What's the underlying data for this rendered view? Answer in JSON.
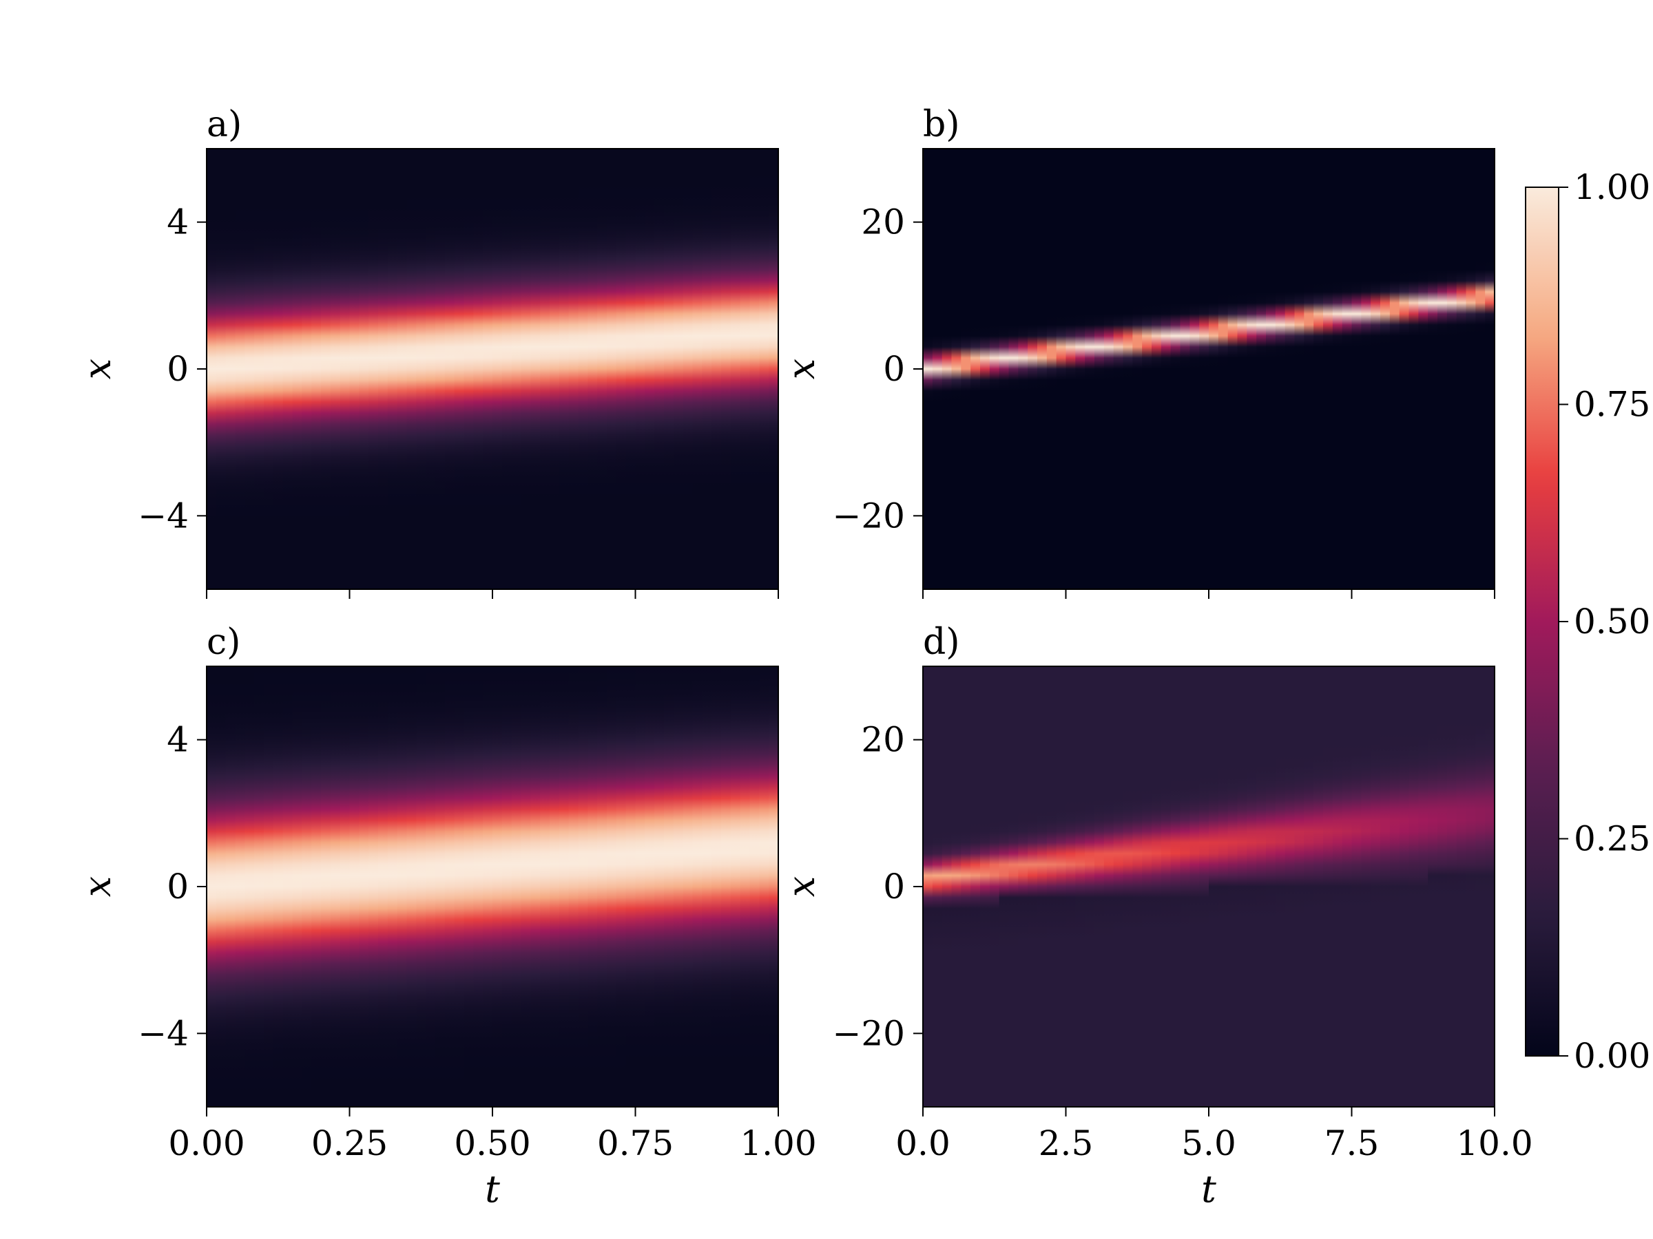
{
  "figure": {
    "colormap": {
      "name": "rocket",
      "stops": [
        "#03051a",
        "#2b1c3d",
        "#5b1e51",
        "#a11a5b",
        "#e83f3f",
        "#f6ab83",
        "#faebdd"
      ],
      "ticks": [
        0.0,
        0.25,
        0.5,
        0.75,
        1.0
      ],
      "tick_labels": [
        "0.00",
        "0.25",
        "0.50",
        "0.75",
        "1.00"
      ],
      "range": [
        0,
        1
      ]
    }
  },
  "chart_data": [
    {
      "type": "heatmap",
      "panel_label": "a)",
      "xlabel": "",
      "ylabel": "x",
      "xlim": [
        0,
        1
      ],
      "ylim": [
        -6,
        6
      ],
      "x_ticks": [
        0,
        0.25,
        0.5,
        0.75,
        1.0
      ],
      "x_tick_labels": [],
      "y_ticks": [
        -4,
        0,
        4
      ],
      "y_tick_labels": [
        "−4",
        "0",
        "4"
      ],
      "field": {
        "start_center": 0.0,
        "end_center": 1.0,
        "width": 1.15,
        "background": 0.02
      },
      "grid": false
    },
    {
      "type": "heatmap",
      "panel_label": "b)",
      "xlabel": "",
      "ylabel": "x",
      "xlim": [
        0,
        10
      ],
      "ylim": [
        -30,
        30
      ],
      "x_ticks": [
        0,
        2.5,
        5,
        7.5,
        10
      ],
      "x_tick_labels": [],
      "y_ticks": [
        -20,
        0,
        20
      ],
      "y_tick_labels": [
        "−20",
        "0",
        "20"
      ],
      "field": {
        "start_center": 0.0,
        "end_center": 10.0,
        "width": 1.1,
        "background": 0.0
      },
      "grid": false
    },
    {
      "type": "heatmap",
      "panel_label": "c)",
      "xlabel": "t",
      "ylabel": "x",
      "xlim": [
        0,
        1
      ],
      "ylim": [
        -6,
        6
      ],
      "x_ticks": [
        0,
        0.25,
        0.5,
        0.75,
        1.0
      ],
      "x_tick_labels": [
        "0.00",
        "0.25",
        "0.50",
        "0.75",
        "1.00"
      ],
      "y_ticks": [
        -4,
        0,
        4
      ],
      "y_tick_labels": [
        "−4",
        "0",
        "4"
      ],
      "field": {
        "start_center": 0.0,
        "end_center": 1.1,
        "width": 1.55,
        "background": 0.02
      },
      "grid": false
    },
    {
      "type": "heatmap",
      "panel_label": "d)",
      "xlabel": "t",
      "ylabel": "x",
      "xlim": [
        0,
        10
      ],
      "ylim": [
        -30,
        30
      ],
      "x_ticks": [
        0,
        2.5,
        5,
        7.5,
        10
      ],
      "x_tick_labels": [
        "0.0",
        "2.5",
        "5.0",
        "7.5",
        "10.0"
      ],
      "y_ticks": [
        -20,
        0,
        20
      ],
      "y_tick_labels": [
        "−20",
        "0",
        "20"
      ],
      "field": {
        "start_center": 1.0,
        "end_center": 10.0,
        "width_start": 1.5,
        "width_end": 4.0,
        "peak_start": 0.85,
        "peak_end": 0.45,
        "background": 0.15
      },
      "grid": false
    }
  ]
}
